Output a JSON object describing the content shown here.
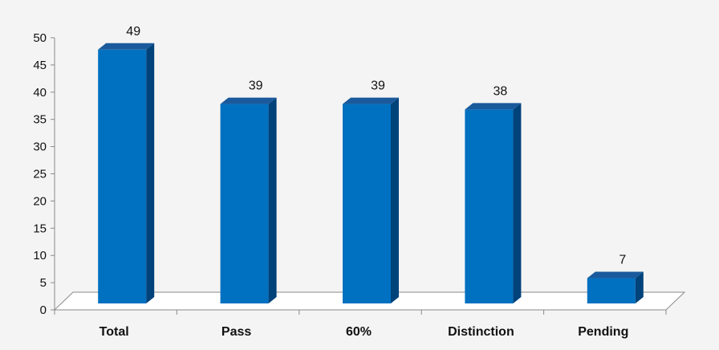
{
  "chart_data": {
    "type": "bar",
    "categories": [
      "Total",
      "Pass",
      "60%",
      "Distinction",
      "Pending"
    ],
    "values": [
      49,
      39,
      39,
      38,
      7
    ],
    "data_labels": [
      "49",
      "39",
      "39",
      "38",
      "7"
    ],
    "ylim": [
      0,
      50
    ],
    "yticks": [
      0,
      5,
      10,
      15,
      20,
      25,
      30,
      35,
      40,
      45,
      50
    ],
    "title": "",
    "xlabel": "",
    "ylabel": "",
    "grid": false,
    "legend": "none",
    "style": "3d-column",
    "colors": {
      "bar_front": "#0070c0",
      "bar_side": "#00427a",
      "bar_top": "#1a5a9c",
      "background": "#f4f4f4",
      "axis": "#8a8a8a"
    }
  }
}
